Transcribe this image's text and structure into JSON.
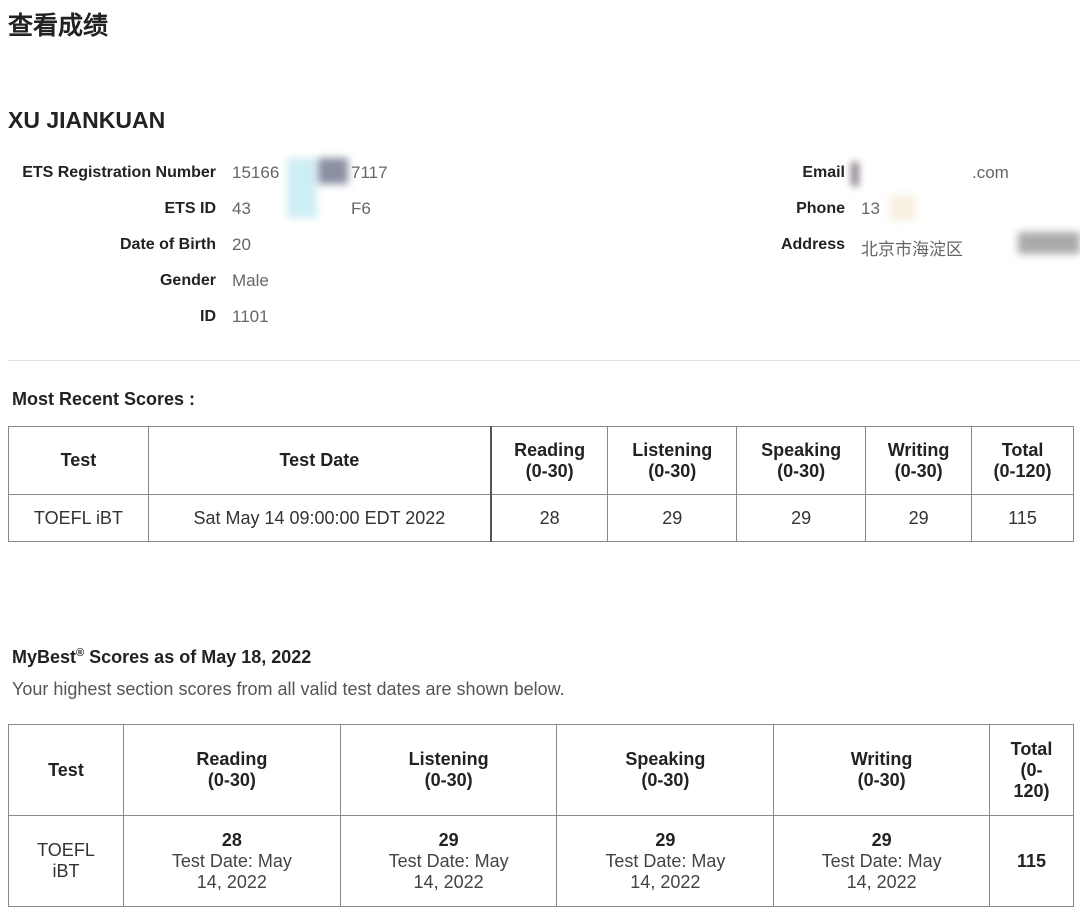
{
  "page_title": "查看成绩",
  "candidate": {
    "name": "XU JIANKUAN",
    "left_fields": [
      {
        "label": "ETS Registration Number",
        "value_start": "15166",
        "value_end": "7117"
      },
      {
        "label": "ETS ID",
        "value_start": "43",
        "value_end": "F6"
      },
      {
        "label": "Date of Birth",
        "value_start": "20",
        "value_end": ""
      },
      {
        "label": "Gender",
        "value_start": "Male",
        "value_end": ""
      },
      {
        "label": "ID",
        "value_start": "1101",
        "value_end": ""
      }
    ],
    "right_fields": [
      {
        "label": "Email",
        "value_start": "",
        "value_end": ".com"
      },
      {
        "label": "Phone",
        "value_start": "13",
        "value_end": ""
      },
      {
        "label": "Address",
        "value_start": "北京市海淀区",
        "value_end": ""
      }
    ]
  },
  "recent": {
    "title": "Most Recent Scores :",
    "headers": [
      {
        "l1": "Test",
        "l2": ""
      },
      {
        "l1": "Test Date",
        "l2": ""
      },
      {
        "l1": "Reading",
        "l2": "(0-30)"
      },
      {
        "l1": "Listening",
        "l2": "(0-30)"
      },
      {
        "l1": "Speaking",
        "l2": "(0-30)"
      },
      {
        "l1": "Writing",
        "l2": "(0-30)"
      },
      {
        "l1": "Total",
        "l2": "(0-120)"
      }
    ],
    "row": [
      "TOEFL iBT",
      "Sat May 14 09:00:00 EDT 2022",
      "28",
      "29",
      "29",
      "29",
      "115"
    ]
  },
  "mybest": {
    "title_prefix": "MyBest",
    "title_sup": "®",
    "title_suffix": " Scores as of May 18, 2022",
    "subtitle": "Your highest section scores from all valid test dates are shown below.",
    "headers": [
      {
        "l1": "Test",
        "l2": ""
      },
      {
        "l1": "Reading",
        "l2": "(0-30)"
      },
      {
        "l1": "Listening",
        "l2": "(0-30)"
      },
      {
        "l1": "Speaking",
        "l2": "(0-30)"
      },
      {
        "l1": "Writing",
        "l2": "(0-30)"
      },
      {
        "l1": "Total",
        "l2": "(0-120)"
      }
    ],
    "test": "TOEFL iBT",
    "scores": [
      {
        "score": "28",
        "date": "Test Date: May 14, 2022"
      },
      {
        "score": "29",
        "date": "Test Date: May 14, 2022"
      },
      {
        "score": "29",
        "date": "Test Date: May 14, 2022"
      },
      {
        "score": "29",
        "date": "Test Date: May 14, 2022"
      }
    ],
    "total": "115"
  }
}
